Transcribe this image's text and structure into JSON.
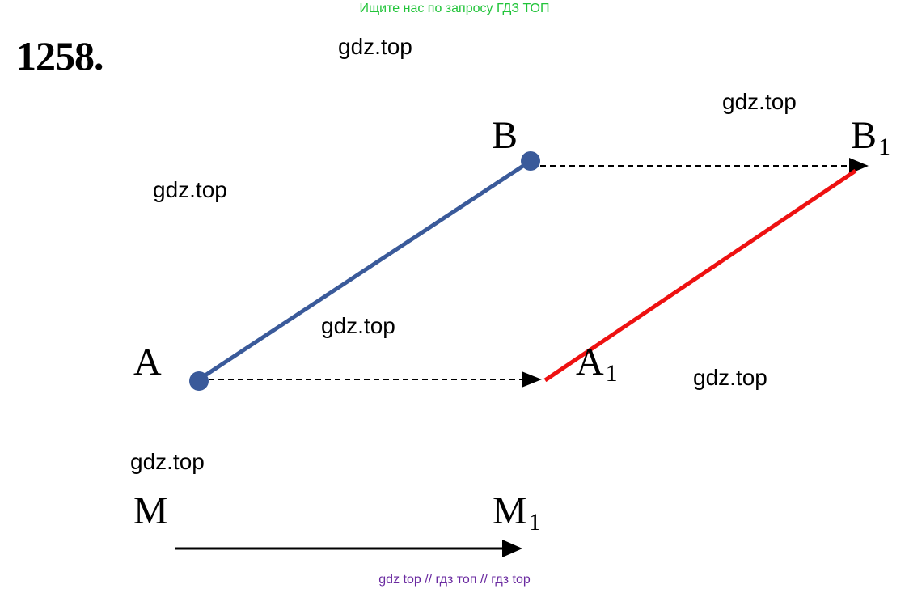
{
  "header": {
    "text": "Ищите нас по запросу ГДЗ ТОП"
  },
  "problem": {
    "number": "1258."
  },
  "watermarks": [
    "gdz.top",
    "gdz.top",
    "gdz.top",
    "gdz.top",
    "gdz.top",
    "gdz.top"
  ],
  "points": {
    "A": {
      "letter": "A",
      "sub": ""
    },
    "B": {
      "letter": "B",
      "sub": ""
    },
    "A1": {
      "letter": "A",
      "sub": "1"
    },
    "B1": {
      "letter": "B",
      "sub": "1"
    },
    "M": {
      "letter": "M",
      "sub": ""
    },
    "M1": {
      "letter": "M",
      "sub": "1"
    }
  },
  "colors": {
    "original_segment": "#3a5a9a",
    "translated_segment": "#ee1111",
    "dashed_arrows": "#000000",
    "vector": "#000000"
  },
  "footer": {
    "text": "gdz top  //  гдз топ  //  гдз top"
  }
}
